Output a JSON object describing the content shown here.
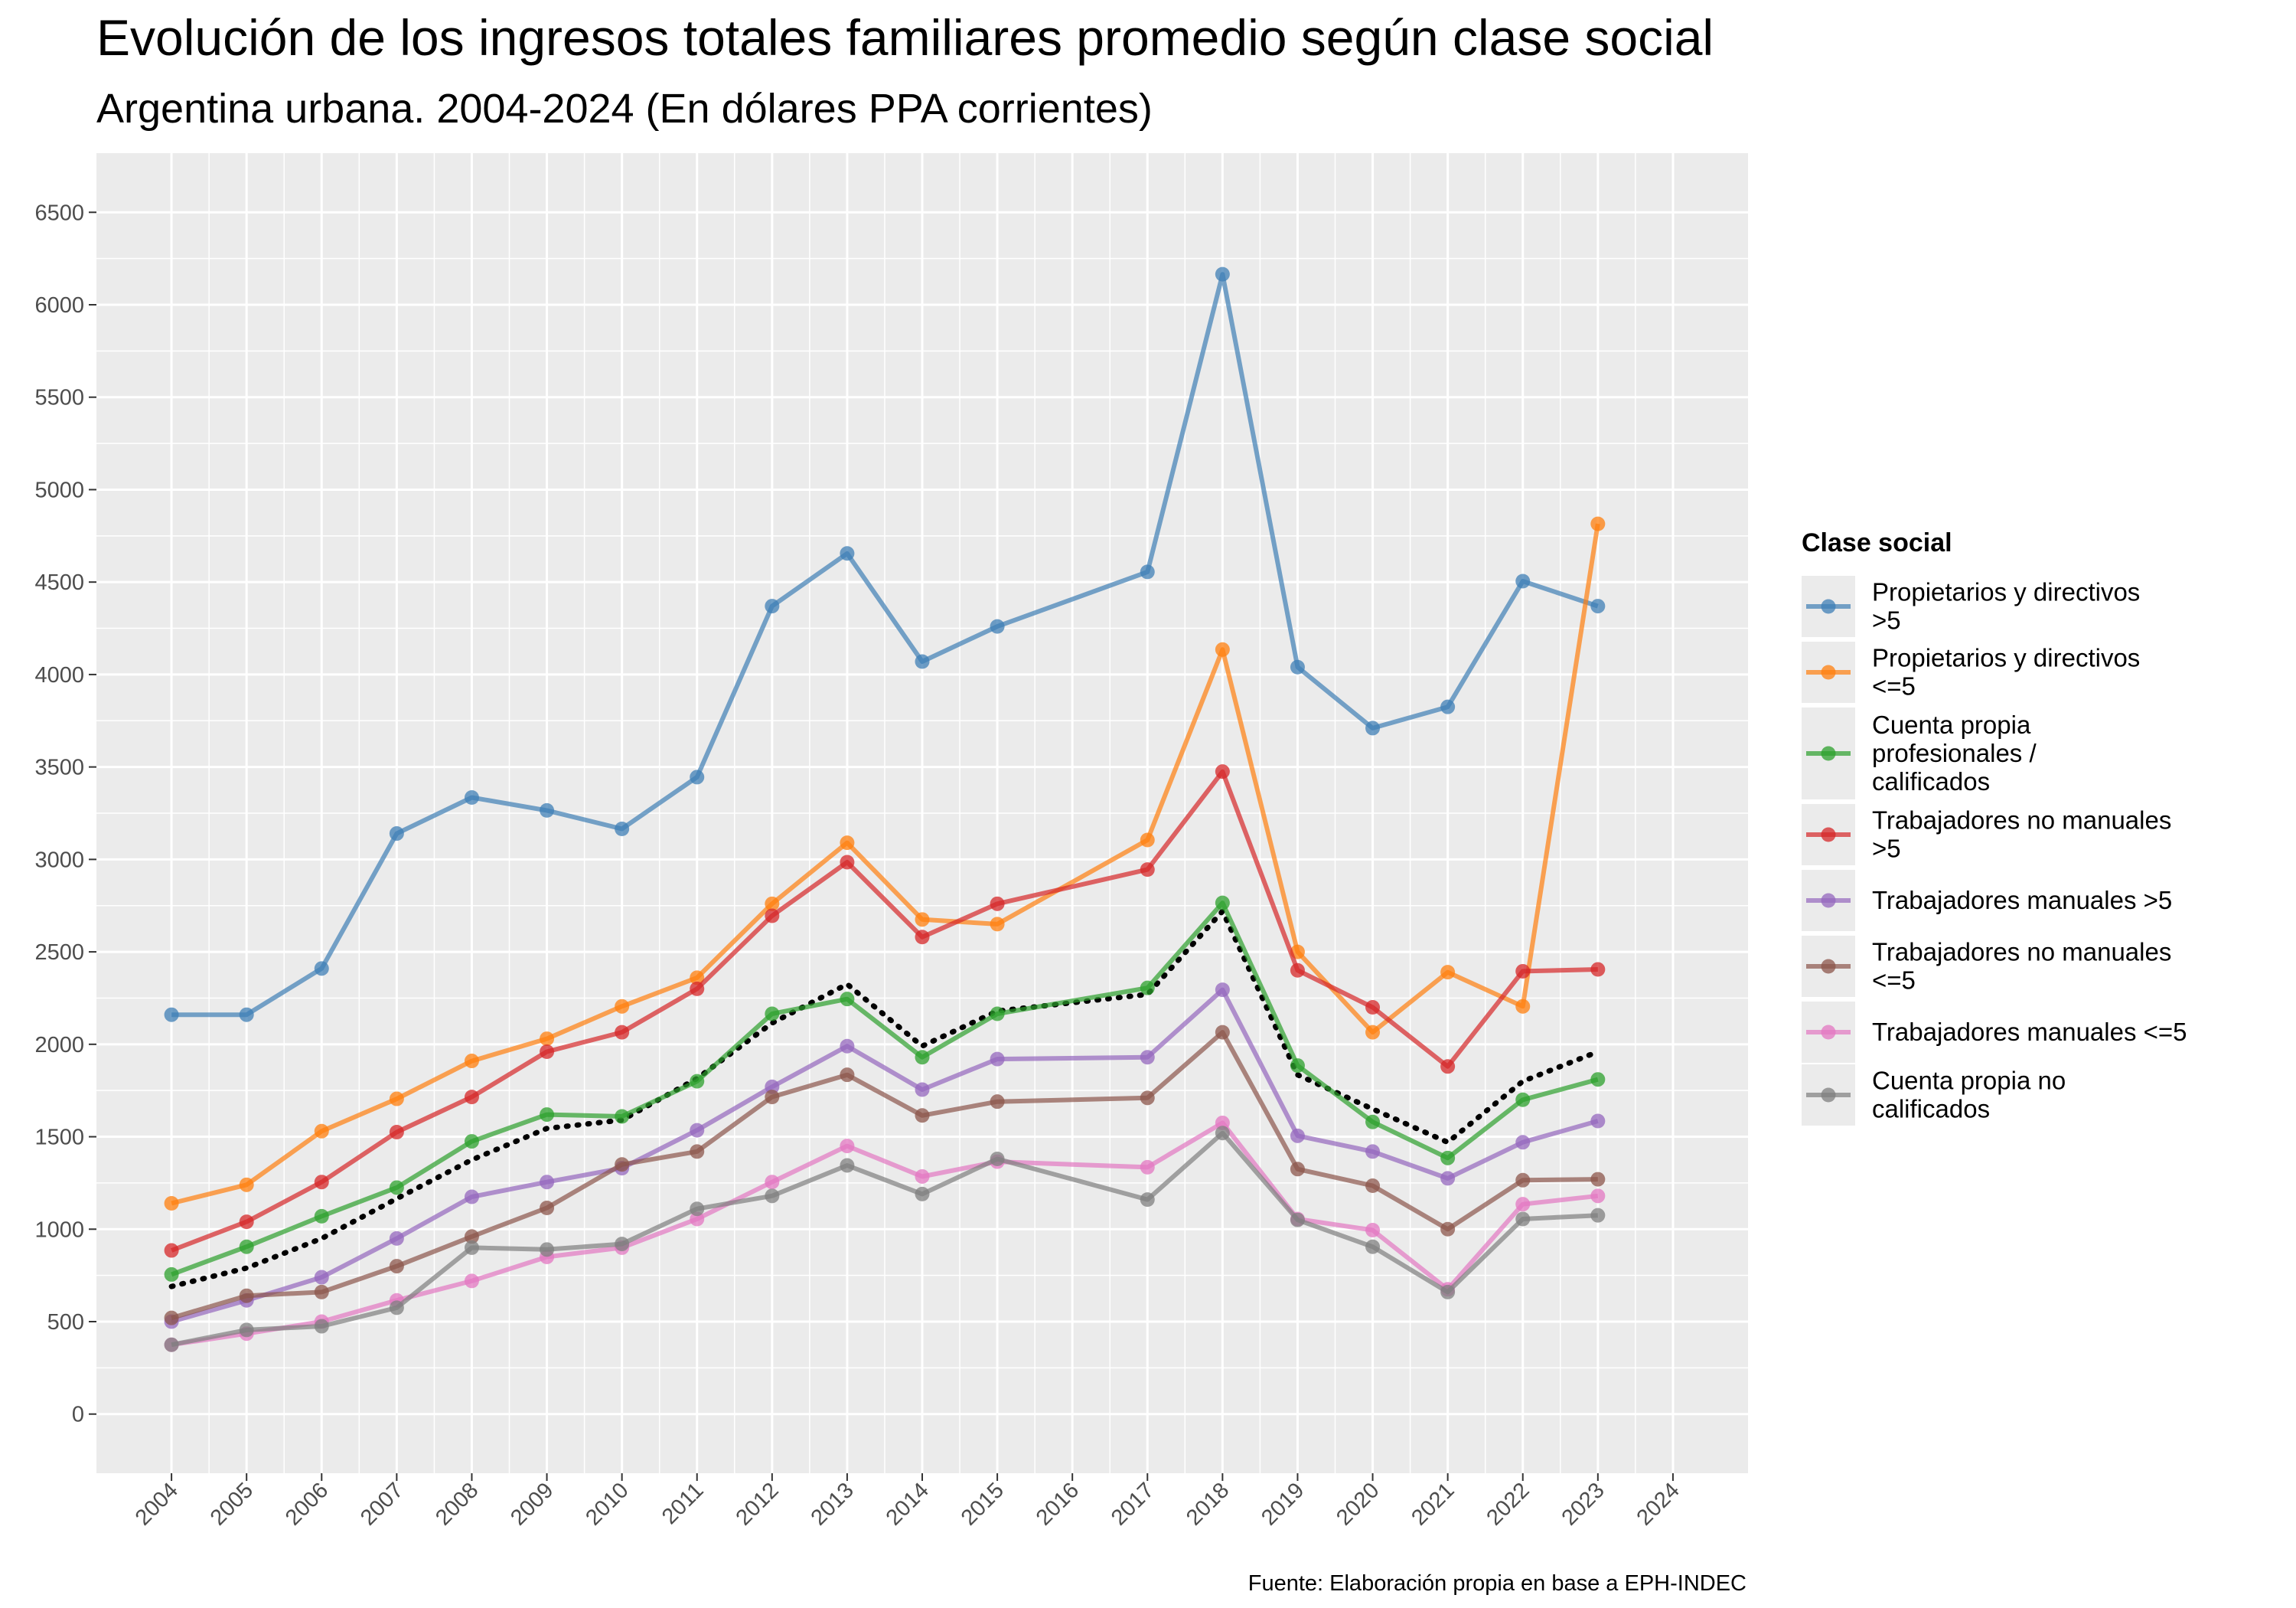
{
  "chart_data": {
    "type": "line",
    "title": "Evolución de los ingresos totales familiares promedio según clase social",
    "subtitle": "Argentina urbana. 2004-2024 (En dólares PPA corrientes)",
    "xlabel": "",
    "ylabel": "",
    "caption": "Fuente: Elaboración propia en base a EPH-INDEC",
    "x": [
      2004,
      2005,
      2006,
      2007,
      2008,
      2009,
      2010,
      2011,
      2012,
      2013,
      2014,
      2015,
      2016,
      2017,
      2018,
      2019,
      2020,
      2021,
      2022,
      2023,
      2024
    ],
    "x_tick_labels": [
      "2004",
      "2005",
      "2006",
      "2007",
      "2008",
      "2009",
      "2010",
      "2011",
      "2012",
      "2013",
      "2014",
      "2015",
      "2016",
      "2017",
      "2018",
      "2019",
      "2020",
      "2021",
      "2022",
      "2023",
      "2024"
    ],
    "y_ticks": [
      0,
      500,
      1000,
      1500,
      2000,
      2500,
      3000,
      3500,
      4000,
      4500,
      5000,
      5500,
      6000,
      6500
    ],
    "y_tick_labels": [
      "0",
      "500",
      "1000",
      "1500",
      "2000",
      "2500",
      "3000",
      "3500",
      "4000",
      "4500",
      "5000",
      "5500",
      "6000",
      "6500"
    ],
    "xlim": [
      2003.0,
      2025.0
    ],
    "ylim": [
      -320,
      6820
    ],
    "grid": true,
    "legend_position": "right",
    "legend_title": "Clase social",
    "series": [
      {
        "name": "Propietarios y directivos >5",
        "legend_lines": [
          "Propietarios y directivos",
          ">5"
        ],
        "color": "#3f7fb5",
        "values": [
          2160,
          2160,
          2410,
          3140,
          3335,
          3265,
          3165,
          3445,
          4370,
          4655,
          4070,
          4260,
          null,
          4555,
          6165,
          4040,
          3710,
          3825,
          4505,
          4370,
          null
        ]
      },
      {
        "name": "Propietarios y directivos <=5",
        "legend_lines": [
          "Propietarios y directivos",
          "<=5"
        ],
        "color": "#ff7f0e",
        "values": [
          1140,
          1240,
          1530,
          1705,
          1910,
          2030,
          2205,
          2360,
          2760,
          3090,
          2675,
          2650,
          null,
          3105,
          4135,
          2500,
          2065,
          2390,
          2205,
          4815,
          null
        ]
      },
      {
        "name": "Cuenta propia profesionales / calificados",
        "legend_lines": [
          "Cuenta propia",
          "profesionales /",
          "calificados"
        ],
        "color": "#2ca02c",
        "values": [
          755,
          905,
          1070,
          1225,
          1475,
          1620,
          1610,
          1800,
          2165,
          2245,
          1930,
          2165,
          null,
          2305,
          2765,
          1885,
          1580,
          1385,
          1700,
          1810,
          null
        ]
      },
      {
        "name": "Trabajadores no manuales >5",
        "legend_lines": [
          "Trabajadores no manuales",
          ">5"
        ],
        "color": "#d62728",
        "values": [
          885,
          1040,
          1255,
          1525,
          1715,
          1960,
          2065,
          2300,
          2695,
          2985,
          2580,
          2760,
          null,
          2945,
          3475,
          2400,
          2200,
          1880,
          2395,
          2405,
          null
        ]
      },
      {
        "name": "Trabajadores manuales >5",
        "legend_lines": [
          "Trabajadores manuales >5"
        ],
        "color": "#9467bd",
        "values": [
          500,
          615,
          740,
          950,
          1175,
          1255,
          1330,
          1535,
          1770,
          1990,
          1755,
          1920,
          null,
          1930,
          2295,
          1505,
          1420,
          1275,
          1470,
          1585,
          null
        ]
      },
      {
        "name": "Trabajadores no manuales <=5",
        "legend_lines": [
          "Trabajadores no manuales",
          "<=5"
        ],
        "color": "#8c564b",
        "values": [
          520,
          640,
          660,
          800,
          960,
          1115,
          1350,
          1420,
          1715,
          1835,
          1615,
          1690,
          null,
          1710,
          2065,
          1325,
          1235,
          1000,
          1265,
          1270,
          null
        ]
      },
      {
        "name": "Trabajadores manuales <=5",
        "legend_lines": [
          "Trabajadores manuales <=5"
        ],
        "color": "#e377c2",
        "values": [
          375,
          435,
          500,
          615,
          720,
          850,
          900,
          1055,
          1255,
          1450,
          1285,
          1365,
          null,
          1335,
          1575,
          1055,
          995,
          675,
          1135,
          1180,
          null
        ]
      },
      {
        "name": "Cuenta propia no calificados",
        "legend_lines": [
          "Cuenta propia no",
          "calificados"
        ],
        "color": "#7f7f7f",
        "values": [
          375,
          455,
          475,
          575,
          900,
          890,
          920,
          1110,
          1180,
          1345,
          1190,
          1380,
          null,
          1160,
          1520,
          1050,
          905,
          660,
          1055,
          1075,
          null
        ]
      }
    ],
    "average_line": {
      "color": "#000000",
      "style": "dotted",
      "values": [
        690,
        790,
        950,
        1165,
        1375,
        1545,
        1590,
        1815,
        2115,
        2325,
        1990,
        2180,
        null,
        2270,
        2720,
        1835,
        1650,
        1470,
        1800,
        1960,
        null
      ]
    }
  }
}
